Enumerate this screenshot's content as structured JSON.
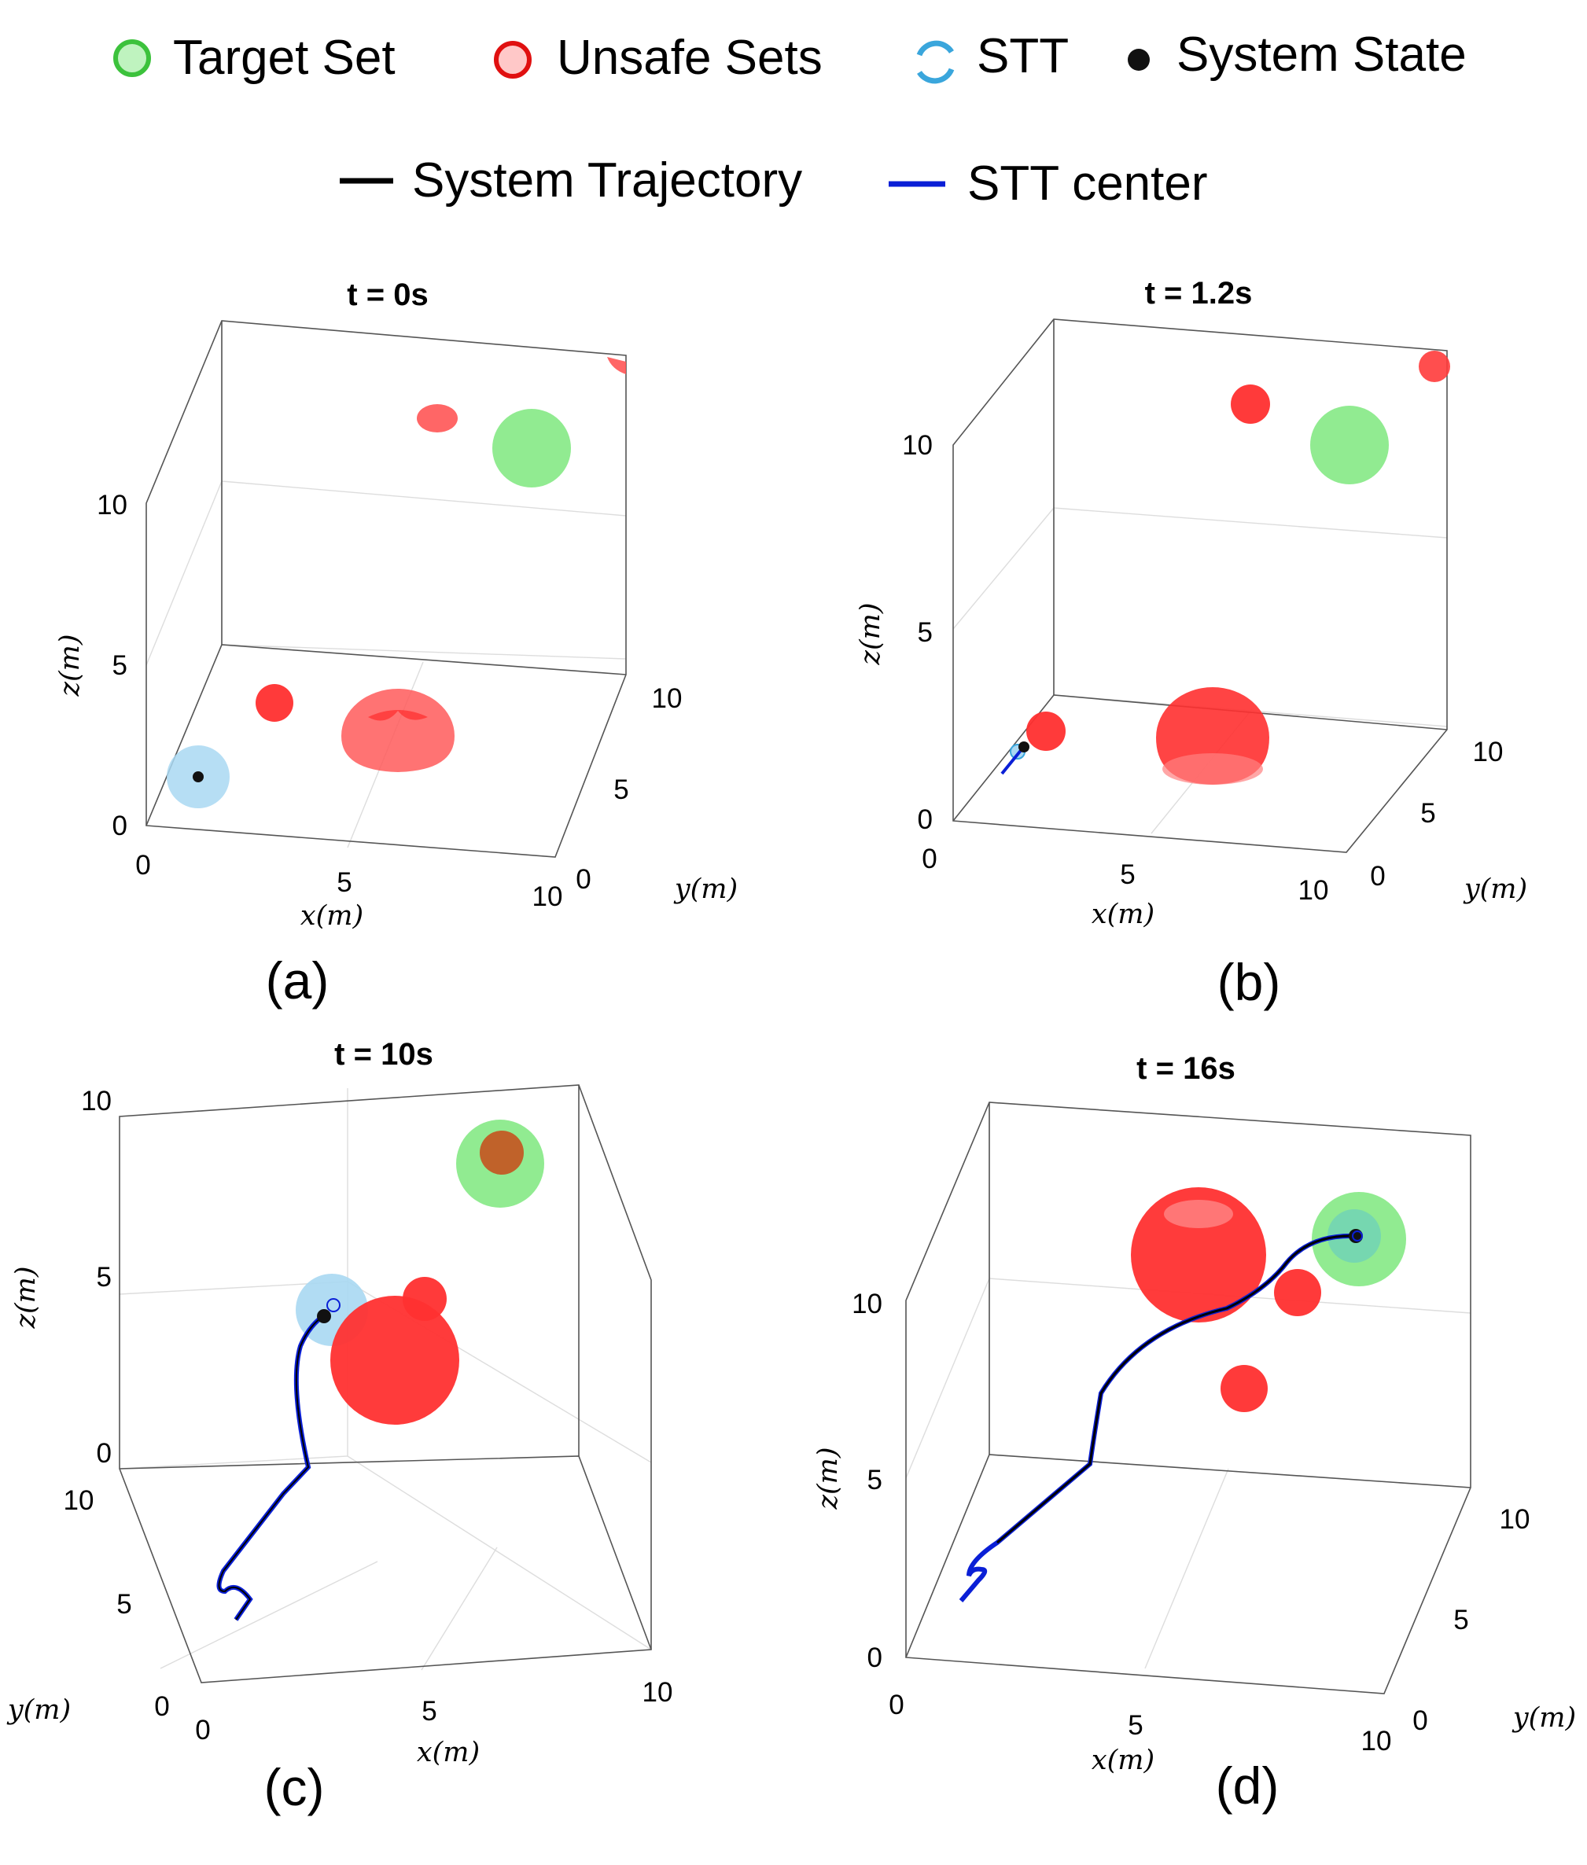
{
  "legend": {
    "row1": [
      {
        "key": "target",
        "label": "Target Set"
      },
      {
        "key": "unsafe",
        "label": "Unsafe Sets"
      },
      {
        "key": "stt",
        "label": "STT"
      },
      {
        "key": "state",
        "label": "System State"
      }
    ],
    "row2": [
      {
        "key": "trajectory",
        "label": "System Trajectory"
      },
      {
        "key": "center",
        "label": "STT center"
      }
    ]
  },
  "colors": {
    "target": "#7ee87e",
    "target_edge": "#3cc23c",
    "unsafe": "#ff3b3b",
    "unsafe_edge": "#e01010",
    "stt": "#a9d8f2",
    "stt_edge": "#3aa6dc",
    "state": "#111111",
    "trajectory": "#000000",
    "center": "#0a1fd6"
  },
  "chart_data": [
    {
      "type": "scatter",
      "title": "t = 0s",
      "panel_label": "(a)",
      "xlabel": "x(m)",
      "ylabel": "y(m)",
      "zlabel": "z(m)",
      "x_ticks": [
        "0",
        "5",
        "10"
      ],
      "y_ticks": [
        "0",
        "5",
        "10"
      ],
      "z_ticks": [
        "0",
        "5",
        "10"
      ],
      "xlim": [
        0,
        10
      ],
      "ylim": [
        0,
        10
      ],
      "zlim": [
        0,
        14
      ],
      "grid": true
    },
    {
      "type": "scatter",
      "title": "t = 1.2s",
      "panel_label": "(b)",
      "xlabel": "x(m)",
      "ylabel": "y(m)",
      "zlabel": "z(m)",
      "x_ticks": [
        "0",
        "5",
        "10"
      ],
      "y_ticks": [
        "0",
        "5",
        "10"
      ],
      "z_ticks": [
        "0",
        "5",
        "10"
      ],
      "xlim": [
        0,
        10
      ],
      "ylim": [
        0,
        10
      ],
      "zlim": [
        0,
        14
      ],
      "grid": true
    },
    {
      "type": "scatter",
      "title": "t = 10s",
      "panel_label": "(c)",
      "xlabel": "x(m)",
      "ylabel": "y(m)",
      "zlabel": "z(m)",
      "x_ticks": [
        "0",
        "5",
        "10"
      ],
      "y_ticks": [
        "0",
        "5",
        "10"
      ],
      "z_ticks": [
        "0",
        "5",
        "10"
      ],
      "xlim": [
        0,
        10
      ],
      "ylim": [
        0,
        10
      ],
      "zlim": [
        0,
        10
      ],
      "grid": true
    },
    {
      "type": "scatter",
      "title": "t = 16s",
      "panel_label": "(d)",
      "xlabel": "x(m)",
      "ylabel": "y(m)",
      "zlabel": "z(m)",
      "x_ticks": [
        "0",
        "5",
        "10"
      ],
      "y_ticks": [
        "0",
        "5",
        "10"
      ],
      "z_ticks": [
        "0",
        "5",
        "10"
      ],
      "xlim": [
        0,
        10
      ],
      "ylim": [
        0,
        10
      ],
      "zlim": [
        0,
        14
      ],
      "grid": true
    }
  ]
}
